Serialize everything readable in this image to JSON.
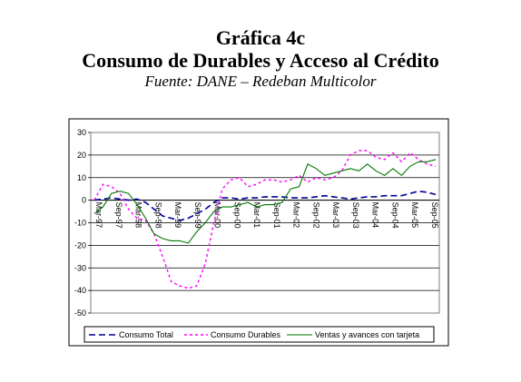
{
  "header": {
    "title": "Gráfica 4c",
    "subtitle": "Consumo de Durables y Acceso al Crédito",
    "source": "Fuente: DANE – Redeban Multicolor"
  },
  "chart_data": {
    "type": "line",
    "ylim": [
      -50,
      30
    ],
    "yticks": [
      -50,
      -40,
      -30,
      -20,
      -10,
      0,
      10,
      20,
      30
    ],
    "x_tick_labels": [
      "Mar-97",
      "Sep-97",
      "Mar-98",
      "Sep-98",
      "Mar-99",
      "Sep-99",
      "Mar-00",
      "Sep-00",
      "Mar-01",
      "Sep-01",
      "Mar-02",
      "Sep-02",
      "Mar-03",
      "Sep-03",
      "Mar-04",
      "Sep-04",
      "Mar-05",
      "Sep-05"
    ],
    "grid": "horizontal",
    "legend_position": "bottom",
    "series": [
      {
        "name": "Consumo Total",
        "color": "#000099",
        "style": "dashed",
        "values": [
          0,
          0.5,
          1,
          0.5,
          0,
          0.5,
          -1,
          -4,
          -7,
          -8,
          -9,
          -8,
          -6,
          -4,
          -1,
          1,
          1,
          0.5,
          1,
          1,
          1.5,
          1.5,
          1.5,
          1,
          1,
          1,
          1.5,
          2,
          1.5,
          1,
          0.5,
          1,
          1.5,
          1.5,
          2,
          2,
          2,
          3,
          4,
          3.5,
          2.5
        ]
      },
      {
        "name": "Consumo Durables",
        "color": "#ff00ff",
        "style": "dotted",
        "values": [
          0,
          7,
          6,
          3,
          -4,
          -8,
          -9,
          -15,
          -25,
          -36,
          -38,
          -39,
          -38,
          -28,
          -10,
          5,
          9,
          10,
          6,
          7,
          9,
          9,
          8,
          9,
          11,
          8,
          10,
          9,
          10,
          13,
          20,
          22,
          22,
          19,
          18,
          21,
          17,
          21,
          18,
          16,
          15
        ]
      },
      {
        "name": "Ventas y avances con tarjeta",
        "color": "#007700",
        "style": "solid",
        "values": [
          -6,
          -3,
          3,
          4,
          3,
          -2,
          -8,
          -15,
          -17,
          -18,
          -18,
          -19,
          -14,
          -10,
          -5,
          -3,
          -3,
          -2,
          -1,
          -3,
          -2,
          -2,
          -1,
          5,
          6,
          16,
          14,
          11,
          12,
          13,
          14,
          13,
          16,
          13,
          11,
          14,
          11,
          15,
          17,
          17,
          18
        ]
      }
    ]
  }
}
